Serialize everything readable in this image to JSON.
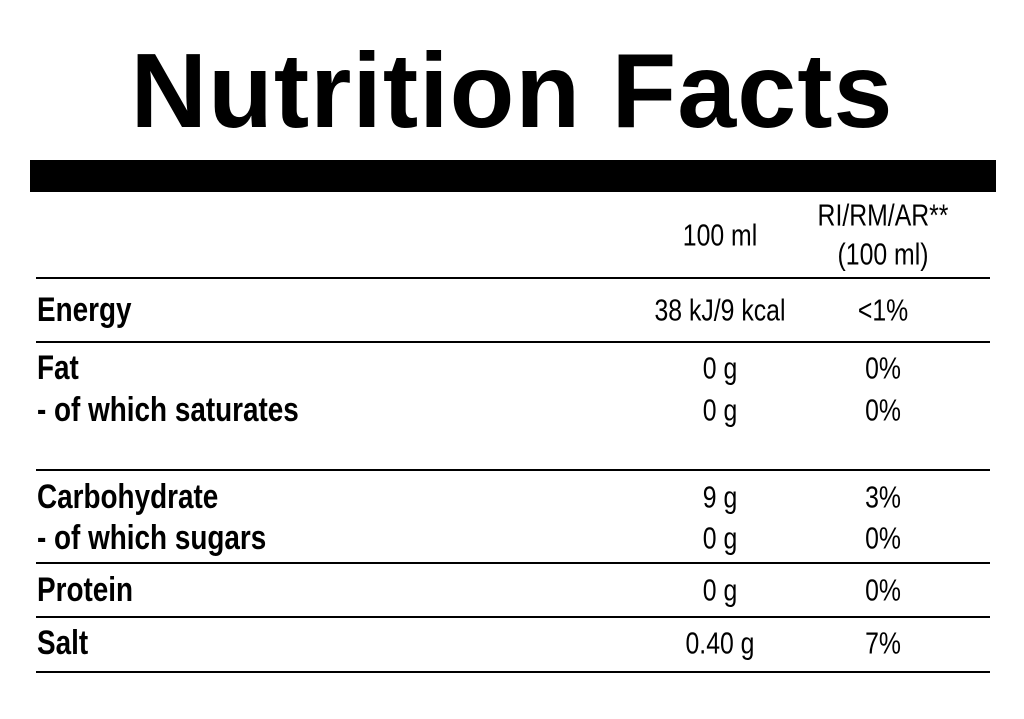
{
  "title": "Nutrition Facts",
  "header": {
    "amount": "100 ml",
    "reference": [
      "RI/RM/AR**",
      "(100 ml)"
    ]
  },
  "groups": [
    [
      [
        "Energy",
        "38 kJ/9 kcal",
        "<1%"
      ]
    ],
    [
      [
        "Fat",
        "0 g",
        "0%"
      ],
      [
        "- of which saturates",
        "0 g",
        "0%"
      ]
    ],
    [
      [
        "Carbohydrate",
        "9 g",
        "3%"
      ],
      [
        "- of which sugars",
        "0 g",
        "0%"
      ]
    ],
    [
      [
        "Protein",
        "0 g",
        "0%"
      ]
    ],
    [
      [
        "Salt",
        "0.40 g",
        "7%"
      ]
    ]
  ]
}
